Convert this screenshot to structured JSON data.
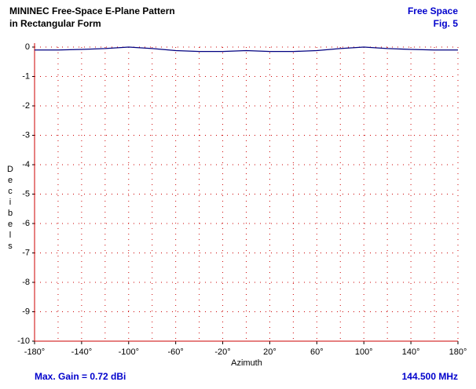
{
  "chart_data": {
    "type": "line",
    "title": "MININEC Free-Space E-Plane Pattern",
    "subtitle": "in Rectangular Form",
    "annotations": {
      "top_right": "Free Space",
      "figure": "Fig. 5",
      "max_gain": "Max. Gain = 0.72 dBi",
      "frequency": "144.500 MHz"
    },
    "x_label": "Azimuth",
    "y_label": "Decibels",
    "x": [
      -180,
      -160,
      -140,
      -120,
      -100,
      -80,
      -60,
      -40,
      -20,
      0,
      20,
      40,
      60,
      80,
      100,
      120,
      140,
      160,
      180
    ],
    "series": [
      {
        "color": "#000080",
        "values": [
          -0.1,
          -0.1,
          -0.08,
          -0.05,
          0,
          -0.05,
          -0.12,
          -0.15,
          -0.15,
          -0.12,
          -0.15,
          -0.15,
          -0.12,
          -0.05,
          0,
          -0.05,
          -0.08,
          -0.1,
          -0.1
        ]
      }
    ],
    "xlim": [
      -180,
      180
    ],
    "xticks": [
      {
        "value": -180,
        "label": "-180°"
      },
      {
        "value": -140,
        "label": "-140°"
      },
      {
        "value": -100,
        "label": "-100°"
      },
      {
        "value": -60,
        "label": "-60°"
      },
      {
        "value": -20,
        "label": "-20°"
      },
      {
        "value": 20,
        "label": "20°"
      },
      {
        "value": 60,
        "label": "60°"
      },
      {
        "value": 100,
        "label": "100°"
      },
      {
        "value": 140,
        "label": "140°"
      },
      {
        "value": 180,
        "label": "180°"
      }
    ],
    "ylim": [
      -10,
      0
    ],
    "yticks": [
      0,
      -1,
      -2,
      -3,
      -4,
      -5,
      -6,
      -7,
      -8,
      -9,
      -10
    ],
    "grid": true,
    "grid_color": "#cc0000"
  }
}
